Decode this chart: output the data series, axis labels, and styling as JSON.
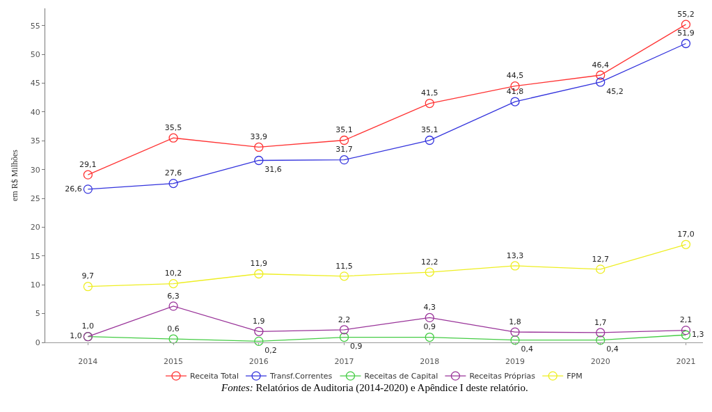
{
  "chart_data": {
    "type": "line",
    "ylabel": "em R$ Milhões",
    "categories": [
      "2014",
      "2015",
      "2016",
      "2017",
      "2018",
      "2019",
      "2020",
      "2021"
    ],
    "series": [
      {
        "name": "Receita Total",
        "color": "#ff3333",
        "values": [
          29.1,
          35.5,
          33.9,
          35.1,
          41.5,
          44.5,
          46.4,
          55.2
        ],
        "value_labels": [
          "29,1",
          "35,5",
          "33,9",
          "35,1",
          "41,5",
          "44,5",
          "46,4",
          "55,2"
        ]
      },
      {
        "name": "Transf.Correntes",
        "color": "#3333dd",
        "values": [
          26.6,
          27.6,
          31.6,
          31.7,
          35.1,
          41.8,
          45.2,
          51.9
        ],
        "value_labels": [
          "26,6",
          "27,6",
          "31,6",
          "31,7",
          "35,1",
          "41,8",
          "45,2",
          "51,9"
        ]
      },
      {
        "name": "Receitas de Capital",
        "color": "#44cc44",
        "values": [
          1.0,
          0.6,
          0.2,
          0.9,
          0.9,
          0.4,
          0.4,
          1.3
        ],
        "value_labels": [
          "1,0",
          "0,6",
          "0,2",
          "0,9",
          "0,9",
          "0,4",
          "0,4",
          "1,3"
        ]
      },
      {
        "name": "Receitas Próprias",
        "color": "#993399",
        "values": [
          1.0,
          6.3,
          1.9,
          2.2,
          4.3,
          1.8,
          1.7,
          2.1
        ],
        "value_labels": [
          "1,0",
          "6,3",
          "1,9",
          "2,2",
          "4,3",
          "1,8",
          "1,7",
          "2,1"
        ]
      },
      {
        "name": "FPM",
        "color": "#eeee22",
        "values": [
          9.7,
          10.2,
          11.9,
          11.5,
          12.2,
          13.3,
          12.7,
          17.0
        ],
        "value_labels": [
          "9,7",
          "10,2",
          "11,9",
          "11,5",
          "12,2",
          "13,3",
          "12,7",
          "17,0"
        ]
      }
    ],
    "ylim": [
      0,
      58
    ],
    "yticks": [
      0,
      5,
      10,
      15,
      20,
      25,
      30,
      35,
      40,
      45,
      50,
      55
    ],
    "legend": "bottom",
    "marker": "circle",
    "line_style": "solid",
    "annotations": [
      "Fontes: Relatórios de Auditoria (2014-2020) e Apêndice I deste relatório."
    ]
  }
}
